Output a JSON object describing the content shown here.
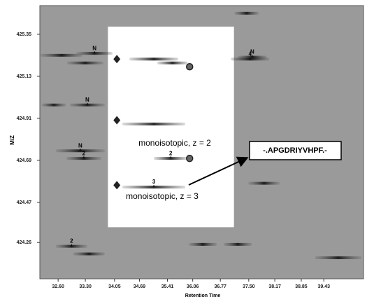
{
  "chart_data": {
    "type": "feature-map",
    "xlabel": "Retention Time",
    "ylabel": "M/Z",
    "xlim": [
      32.13,
      40.45
    ],
    "ylim": [
      424.07,
      425.5
    ],
    "xticks": [
      {
        "value": 32.6,
        "label": "32.60"
      },
      {
        "value": 33.3,
        "label": "33.30"
      },
      34.05,
      34.69,
      35.41,
      36.06,
      36.77,
      {
        "value": 37.5,
        "label": "37.50"
      },
      38.17,
      38.85,
      39.43
    ],
    "yticks": [
      425.35,
      425.13,
      424.91,
      424.69,
      424.47,
      424.26
    ],
    "highlight": {
      "xlim": [
        33.88,
        37.12
      ],
      "ylim": [
        424.34,
        425.39
      ]
    },
    "features": {
      "x_start": [
        32.15,
        33.07,
        32.83,
        34.43,
        35.15,
        37.04,
        37.22,
        37.13,
        32.18,
        32.9,
        34.25,
        32.54,
        32.81,
        35.06,
        34.25,
        37.49,
        32.54,
        32.99,
        35.96,
        36.86,
        39.2
      ],
      "x_end": [
        33.23,
        34.0,
        33.76,
        35.69,
        35.93,
        38.03,
        37.96,
        37.76,
        32.8,
        33.8,
        35.87,
        33.8,
        33.71,
        35.93,
        35.87,
        38.3,
        33.35,
        33.8,
        36.68,
        37.58,
        40.4
      ],
      "values": [
        425.24,
        425.25,
        425.2,
        425.22,
        425.2,
        425.22,
        425.23,
        425.46,
        424.98,
        424.98,
        424.88,
        424.74,
        424.7,
        424.7,
        424.55,
        424.57,
        424.24,
        424.2,
        424.25,
        424.25,
        424.18
      ],
      "charge_labels": [
        null,
        "N",
        null,
        null,
        null,
        "4",
        "N",
        null,
        null,
        "N",
        null,
        "N",
        "2",
        "2",
        "3",
        null,
        "2",
        null,
        null,
        null,
        null
      ]
    },
    "diamonds": {
      "x": [
        34.11,
        34.11,
        34.11
      ],
      "values": [
        425.22,
        424.9,
        424.56
      ]
    },
    "circles": {
      "x": [
        35.98,
        35.98
      ],
      "values": [
        425.18,
        424.7
      ]
    },
    "annotations": [
      "monoisotopic, z = 2",
      "monoisotopic, z = 3"
    ],
    "peptide": "-.APGDRIYVHPF.-"
  }
}
